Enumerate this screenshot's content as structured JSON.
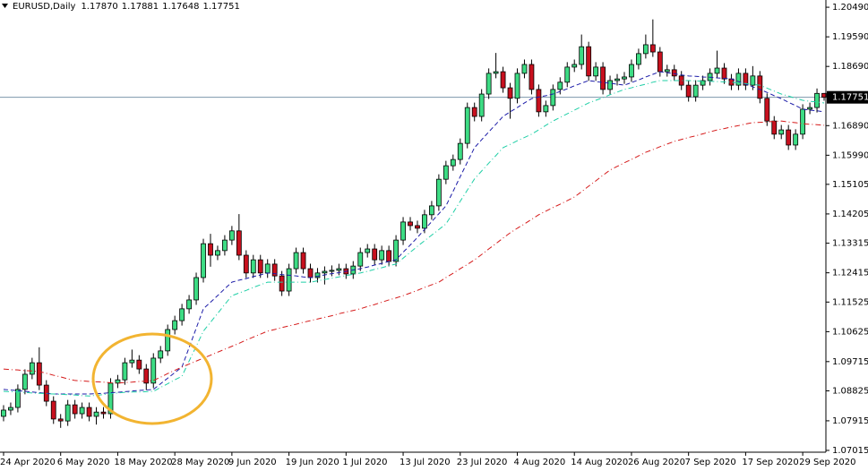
{
  "chart_data": {
    "type": "candlestick",
    "title": "EURUSD,Daily",
    "header_values": [
      "1.17870",
      "1.17881",
      "1.17648",
      "1.17751"
    ],
    "categories": [
      "24 Apr 2020",
      null,
      null,
      null,
      null,
      null,
      null,
      null,
      "6 May 2020",
      null,
      null,
      null,
      null,
      null,
      null,
      null,
      "18 May 2020",
      null,
      null,
      null,
      null,
      null,
      null,
      null,
      "28 May 2020",
      null,
      null,
      null,
      null,
      null,
      null,
      null,
      "9 Jun 2020",
      null,
      null,
      null,
      null,
      null,
      null,
      null,
      "19 Jun 2020",
      null,
      null,
      null,
      null,
      null,
      null,
      null,
      "1 Jul 2020",
      null,
      null,
      null,
      null,
      null,
      null,
      null,
      "13 Jul 2020",
      null,
      null,
      null,
      null,
      null,
      null,
      null,
      "23 Jul 2020",
      null,
      null,
      null,
      null,
      null,
      null,
      null,
      "4 Aug 2020",
      null,
      null,
      null,
      null,
      null,
      null,
      null,
      "14 Aug 2020",
      null,
      null,
      null,
      null,
      null,
      null,
      null,
      "26 Aug 2020",
      null,
      null,
      null,
      null,
      null,
      null,
      null,
      "7 Sep 2020",
      null,
      null,
      null,
      null,
      null,
      null,
      null,
      "17 Sep 2020",
      null,
      null,
      null,
      null,
      null,
      null,
      null,
      "29 Sep 2020",
      null,
      null,
      null
    ],
    "open": [
      1.0805,
      1.0824,
      1.0832,
      1.0887,
      1.0933,
      1.0968,
      1.09,
      1.0851,
      1.0797,
      1.0791,
      1.084,
      1.0813,
      1.0832,
      1.0805,
      1.0818,
      1.0813,
      1.0906,
      1.0916,
      1.0968,
      1.0976,
      1.0949,
      1.0906,
      1.0982,
      1.1004,
      1.1069,
      1.1096,
      1.1132,
      1.1159,
      1.1227,
      1.133,
      1.1295,
      1.1309,
      1.1341,
      1.1369,
      1.1295,
      1.1241,
      1.1281,
      1.1241,
      1.1268,
      1.1232,
      1.1186,
      1.1254,
      1.1303,
      1.1254,
      1.1227,
      1.1241,
      1.1246,
      1.1249,
      1.1254,
      1.1238,
      1.1262,
      1.1303,
      1.1314,
      1.1281,
      1.1309,
      1.1276,
      1.1341,
      1.1396,
      1.1385,
      1.1377,
      1.1418,
      1.1445,
      1.1526,
      1.1567,
      1.1586,
      1.1635,
      1.1744,
      1.1717,
      1.1785,
      1.1848,
      1.1853,
      1.1804,
      1.1772,
      1.1848,
      1.1875,
      1.1799,
      1.1731,
      1.175,
      1.1799,
      1.1821,
      1.1867,
      1.1875,
      1.1929,
      1.184,
      1.1867,
      1.1799,
      1.1826,
      1.1831,
      1.1837,
      1.1875,
      1.1908,
      1.1935,
      1.1913,
      1.1853,
      1.1859,
      1.184,
      1.1812,
      1.1777,
      1.1812,
      1.1826,
      1.1848,
      1.1864,
      1.1831,
      1.1812,
      1.1848,
      1.1812,
      1.184,
      1.1772,
      1.1703,
      1.1663,
      1.1676,
      1.163,
      1.1663,
      1.1739,
      1.1744,
      1.1787
    ],
    "high": [
      1.0839,
      1.0847,
      1.0902,
      1.0948,
      1.0983,
      1.1015,
      1.0915,
      1.0866,
      1.0812,
      1.0855,
      1.0855,
      1.0847,
      1.0847,
      1.0833,
      1.0833,
      1.0921,
      1.0931,
      1.0983,
      1.1008,
      1.0991,
      1.0964,
      1.0997,
      1.1019,
      1.1084,
      1.1111,
      1.1147,
      1.1174,
      1.1242,
      1.1345,
      1.136,
      1.1324,
      1.1356,
      1.1384,
      1.142,
      1.131,
      1.1296,
      1.1296,
      1.1283,
      1.1283,
      1.1247,
      1.1269,
      1.1318,
      1.1318,
      1.1269,
      1.1256,
      1.1261,
      1.1264,
      1.1269,
      1.1269,
      1.1277,
      1.1318,
      1.1329,
      1.1329,
      1.1324,
      1.1324,
      1.1356,
      1.1411,
      1.1411,
      1.14,
      1.1433,
      1.146,
      1.1541,
      1.1582,
      1.1601,
      1.165,
      1.1759,
      1.1759,
      1.18,
      1.1863,
      1.191,
      1.1868,
      1.1819,
      1.1863,
      1.189,
      1.189,
      1.1814,
      1.1765,
      1.1814,
      1.1836,
      1.1882,
      1.189,
      1.1966,
      1.1944,
      1.1882,
      1.1882,
      1.1841,
      1.1846,
      1.1852,
      1.189,
      1.1923,
      1.1966,
      1.2012,
      1.1928,
      1.1874,
      1.1874,
      1.1855,
      1.1827,
      1.1827,
      1.1841,
      1.1863,
      1.1917,
      1.1879,
      1.1846,
      1.1863,
      1.1863,
      1.187,
      1.1855,
      1.1787,
      1.1718,
      1.1691,
      1.1691,
      1.1678,
      1.1754,
      1.1759,
      1.1802,
      1.17881
    ],
    "low": [
      1.079,
      1.0809,
      1.0817,
      1.0872,
      1.0918,
      1.0885,
      1.0836,
      1.0782,
      1.077,
      1.0776,
      1.0798,
      1.0798,
      1.079,
      1.078,
      1.0798,
      1.0798,
      1.0891,
      1.0901,
      1.0953,
      1.0934,
      1.0885,
      1.0891,
      1.0967,
      1.0989,
      1.1054,
      1.1081,
      1.1117,
      1.1144,
      1.1212,
      1.126,
      1.128,
      1.1294,
      1.1326,
      1.128,
      1.1226,
      1.1226,
      1.1226,
      1.1226,
      1.1217,
      1.1171,
      1.1171,
      1.1239,
      1.1239,
      1.1212,
      1.1212,
      1.1206,
      1.1231,
      1.1234,
      1.1223,
      1.1223,
      1.1247,
      1.1288,
      1.1266,
      1.1266,
      1.1261,
      1.1261,
      1.1326,
      1.137,
      1.1362,
      1.1362,
      1.1403,
      1.143,
      1.1511,
      1.1552,
      1.1571,
      1.162,
      1.1702,
      1.1702,
      1.177,
      1.1833,
      1.1789,
      1.171,
      1.1757,
      1.1833,
      1.1784,
      1.1716,
      1.1716,
      1.1735,
      1.1784,
      1.1806,
      1.1852,
      1.186,
      1.1825,
      1.1825,
      1.1784,
      1.1784,
      1.1811,
      1.1816,
      1.1822,
      1.186,
      1.1893,
      1.1898,
      1.1838,
      1.1838,
      1.1825,
      1.1797,
      1.1762,
      1.1762,
      1.1797,
      1.1811,
      1.1833,
      1.1816,
      1.1797,
      1.1797,
      1.1797,
      1.1797,
      1.1757,
      1.1688,
      1.1648,
      1.1648,
      1.1615,
      1.1615,
      1.1648,
      1.1724,
      1.1729,
      1.17648
    ],
    "close": [
      1.0824,
      1.0832,
      1.0887,
      1.0933,
      1.0968,
      1.09,
      1.0851,
      1.0797,
      1.0791,
      1.084,
      1.0813,
      1.0832,
      1.0805,
      1.0818,
      1.0813,
      1.0906,
      1.0916,
      1.0968,
      1.0976,
      1.0949,
      1.0906,
      1.0982,
      1.1004,
      1.1069,
      1.1096,
      1.1132,
      1.1159,
      1.1227,
      1.133,
      1.1295,
      1.1309,
      1.1341,
      1.1369,
      1.1295,
      1.1241,
      1.1281,
      1.1241,
      1.1268,
      1.1232,
      1.1186,
      1.1254,
      1.1303,
      1.1254,
      1.1227,
      1.1241,
      1.1246,
      1.1249,
      1.1254,
      1.1238,
      1.1262,
      1.1303,
      1.1314,
      1.1281,
      1.1309,
      1.1276,
      1.1341,
      1.1396,
      1.1385,
      1.1377,
      1.1418,
      1.1445,
      1.1526,
      1.1567,
      1.1586,
      1.1635,
      1.1744,
      1.1717,
      1.1785,
      1.1848,
      1.1853,
      1.1804,
      1.1772,
      1.1848,
      1.1875,
      1.1799,
      1.1731,
      1.175,
      1.1799,
      1.1821,
      1.1867,
      1.1875,
      1.1929,
      1.184,
      1.1867,
      1.1799,
      1.1826,
      1.1831,
      1.1837,
      1.1875,
      1.1908,
      1.1935,
      1.1913,
      1.1853,
      1.1859,
      1.184,
      1.1812,
      1.1777,
      1.1812,
      1.1826,
      1.1848,
      1.1864,
      1.1831,
      1.1812,
      1.1848,
      1.1812,
      1.184,
      1.1772,
      1.1703,
      1.1663,
      1.1676,
      1.163,
      1.1663,
      1.1739,
      1.1744,
      1.1787,
      1.17751
    ],
    "up_color": "#3ddc84",
    "down_color": "#c8101e",
    "indicators": [
      {
        "color": "#1c1ca8",
        "style": "dash",
        "values": [
          1.0887,
          1.0885,
          1.0883,
          1.0881,
          1.0879,
          1.0877,
          1.0875,
          1.0873,
          1.0873,
          1.0873,
          1.0873,
          1.0873,
          1.0873,
          1.0874,
          1.0875,
          1.0877,
          1.0878,
          1.088,
          1.0882,
          1.0884,
          1.0885,
          1.0887,
          1.0904,
          1.0921,
          1.0938,
          1.0955,
          1.1014,
          1.1073,
          1.1132,
          1.1152,
          1.1172,
          1.1193,
          1.1213,
          1.1219,
          1.1224,
          1.123,
          1.1235,
          1.1241,
          1.1239,
          1.1236,
          1.1234,
          1.1232,
          1.1229,
          1.1227,
          1.1231,
          1.1235,
          1.1239,
          1.1242,
          1.1246,
          1.125,
          1.1254,
          1.1259,
          1.1265,
          1.127,
          1.1276,
          1.1281,
          1.1304,
          1.1326,
          1.1349,
          1.1373,
          1.1397,
          1.1421,
          1.1445,
          1.1489,
          1.1534,
          1.1578,
          1.1622,
          1.1646,
          1.167,
          1.1693,
          1.1717,
          1.1731,
          1.1744,
          1.1758,
          1.1771,
          1.1776,
          1.178,
          1.1785,
          1.1793,
          1.1801,
          1.181,
          1.1818,
          1.1826,
          1.1823,
          1.182,
          1.1818,
          1.1815,
          1.1812,
          1.182,
          1.1828,
          1.1837,
          1.1845,
          1.1853,
          1.185,
          1.1847,
          1.1843,
          1.184,
          1.1839,
          1.1837,
          1.1836,
          1.1834,
          1.1833,
          1.1831,
          1.1823,
          1.1815,
          1.1807,
          1.1799,
          1.179,
          1.178,
          1.1771,
          1.176,
          1.175,
          1.1739,
          1.1736,
          1.1734,
          1.1731
        ]
      },
      {
        "color": "#1fcfa6",
        "style": "dashdot",
        "values": [
          1.0881,
          1.088,
          1.0879,
          1.0878,
          1.0876,
          1.0875,
          1.0874,
          1.0873,
          1.0872,
          1.0871,
          1.087,
          1.0868,
          1.0867,
          1.0869,
          1.0871,
          1.0874,
          1.0876,
          1.0878,
          1.0879,
          1.0879,
          1.088,
          1.0881,
          1.0893,
          1.0904,
          1.0916,
          1.0927,
          1.0973,
          1.1018,
          1.1064,
          1.1091,
          1.1118,
          1.1145,
          1.1172,
          1.118,
          1.1188,
          1.1197,
          1.1205,
          1.1213,
          1.1213,
          1.1213,
          1.1213,
          1.1213,
          1.1213,
          1.1213,
          1.1217,
          1.1221,
          1.1225,
          1.1229,
          1.1233,
          1.1237,
          1.1241,
          1.1246,
          1.1252,
          1.1257,
          1.1263,
          1.1268,
          1.1286,
          1.1304,
          1.1322,
          1.1339,
          1.1356,
          1.1373,
          1.139,
          1.1424,
          1.1459,
          1.1493,
          1.1527,
          1.1551,
          1.1575,
          1.1598,
          1.1622,
          1.1632,
          1.1643,
          1.1653,
          1.1663,
          1.1676,
          1.169,
          1.1703,
          1.1714,
          1.1725,
          1.1736,
          1.1747,
          1.1758,
          1.1766,
          1.1774,
          1.1783,
          1.1791,
          1.1799,
          1.1804,
          1.181,
          1.1815,
          1.1821,
          1.1826,
          1.1826,
          1.1826,
          1.1826,
          1.1826,
          1.1825,
          1.1824,
          1.1824,
          1.1823,
          1.1822,
          1.1821,
          1.1819,
          1.1817,
          1.1814,
          1.1812,
          1.1803,
          1.1794,
          1.1785,
          1.1779,
          1.1772,
          1.1766,
          1.1763,
          1.1761,
          1.1758
        ]
      },
      {
        "color": "#d51a1a",
        "style": "dashdot",
        "values": [
          1.0949,
          1.0947,
          1.0946,
          1.0944,
          1.0943,
          1.0941,
          1.0936,
          1.093,
          1.0925,
          1.0919,
          1.0914,
          1.0913,
          1.0911,
          1.091,
          1.0909,
          1.0907,
          1.0906,
          1.0908,
          1.0909,
          1.0911,
          1.0912,
          1.0914,
          1.0924,
          1.0935,
          1.0945,
          1.0955,
          1.0964,
          1.0973,
          1.0982,
          1.0991,
          1.1,
          1.1009,
          1.1018,
          1.1027,
          1.1037,
          1.1046,
          1.1055,
          1.1064,
          1.1069,
          1.1075,
          1.108,
          1.1085,
          1.1091,
          1.1096,
          1.1101,
          1.1106,
          1.1111,
          1.1117,
          1.1122,
          1.1127,
          1.1132,
          1.1139,
          1.1145,
          1.1152,
          1.1159,
          1.1165,
          1.1172,
          1.118,
          1.1188,
          1.1197,
          1.1205,
          1.1213,
          1.1227,
          1.124,
          1.1254,
          1.1267,
          1.1281,
          1.1297,
          1.1314,
          1.133,
          1.1347,
          1.1363,
          1.1377,
          1.139,
          1.1404,
          1.1418,
          1.1429,
          1.144,
          1.145,
          1.1461,
          1.1472,
          1.1488,
          1.1505,
          1.1521,
          1.1538,
          1.1554,
          1.1565,
          1.1576,
          1.1586,
          1.1597,
          1.1608,
          1.1616,
          1.1625,
          1.1633,
          1.1641,
          1.1647,
          1.1653,
          1.1658,
          1.1664,
          1.167,
          1.1676,
          1.168,
          1.1685,
          1.1689,
          1.1694,
          1.1698,
          1.1699,
          1.17,
          1.1702,
          1.1703,
          1.17,
          1.1698,
          1.1695,
          1.1693,
          1.1692,
          1.169
        ]
      }
    ],
    "current_price": {
      "value": 1.17751,
      "label": "1.17751"
    },
    "ylim": [
      1.0696,
      1.2071
    ],
    "yticks": [
      {
        "value": 1.2049,
        "label": "1.20490"
      },
      {
        "value": 1.1959,
        "label": "1.19590"
      },
      {
        "value": 1.1869,
        "label": "1.18690"
      },
      {
        "value": 1.1689,
        "label": "1.16890"
      },
      {
        "value": 1.1599,
        "label": "1.15990"
      },
      {
        "value": 1.15105,
        "label": "1.15105"
      },
      {
        "value": 1.14205,
        "label": "1.14205"
      },
      {
        "value": 1.13315,
        "label": "1.13315"
      },
      {
        "value": 1.12415,
        "label": "1.12415"
      },
      {
        "value": 1.11525,
        "label": "1.11525"
      },
      {
        "value": 1.10625,
        "label": "1.10625"
      },
      {
        "value": 1.09715,
        "label": "1.09715"
      },
      {
        "value": 1.08825,
        "label": "1.08825"
      },
      {
        "value": 1.07915,
        "label": "1.07915"
      },
      {
        "value": 1.07015,
        "label": "1.07015"
      }
    ],
    "grid": false
  }
}
